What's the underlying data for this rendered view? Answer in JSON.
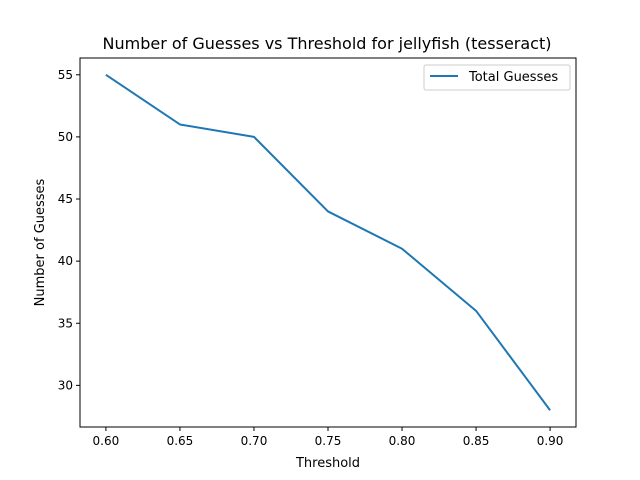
{
  "chart_data": {
    "type": "line",
    "title": "Number of Guesses vs Threshold for jellyfish (tesseract)",
    "xlabel": "Threshold",
    "ylabel": "Number of Guesses",
    "x": [
      0.6,
      0.65,
      0.7,
      0.75,
      0.8,
      0.85,
      0.9
    ],
    "series": [
      {
        "name": "Total Guesses",
        "color": "#1f77b4",
        "values": [
          55,
          51,
          50,
          44,
          41,
          36,
          28
        ]
      }
    ],
    "xlim": [
      0.5825,
      0.9175
    ],
    "ylim": [
      26.65,
      56.35
    ],
    "xticks": [
      "0.60",
      "0.65",
      "0.70",
      "0.75",
      "0.80",
      "0.85",
      "0.90"
    ],
    "yticks": [
      "30",
      "35",
      "40",
      "45",
      "50",
      "55"
    ],
    "grid": false,
    "legend_position": "top-right"
  }
}
